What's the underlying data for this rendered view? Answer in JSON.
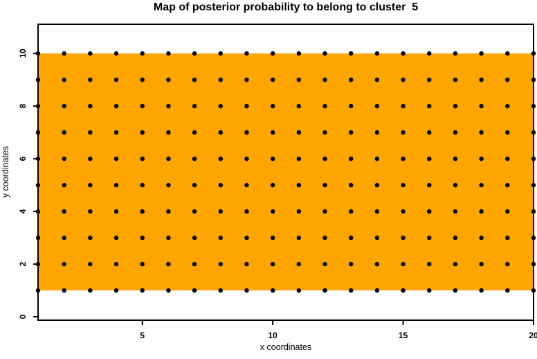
{
  "chart_data": {
    "type": "heatmap",
    "title": "Map of posterior probability to belong to cluster  5",
    "xlabel": "x coordinates",
    "ylabel": "y coordinates",
    "xlim": [
      1,
      20
    ],
    "ylim": [
      -0.13,
      11.11
    ],
    "x_ticks": [
      5,
      10,
      15,
      20
    ],
    "y_ticks": [
      0,
      2,
      4,
      6,
      8,
      10
    ],
    "heat_region": {
      "x_min": 1,
      "x_max": 20,
      "y_min": 1,
      "y_max": 10,
      "color": "#FFA500",
      "uniform_value": true
    },
    "grid_points": {
      "x_min": 1,
      "x_max": 20,
      "x_step": 1,
      "y_min": 1,
      "y_max": 10,
      "y_step": 1,
      "color": "#000000"
    },
    "colors": {
      "background": "#FFFFFF",
      "axis": "#000000",
      "heat": "#FFA500",
      "point": "#000000"
    },
    "legend": null
  }
}
